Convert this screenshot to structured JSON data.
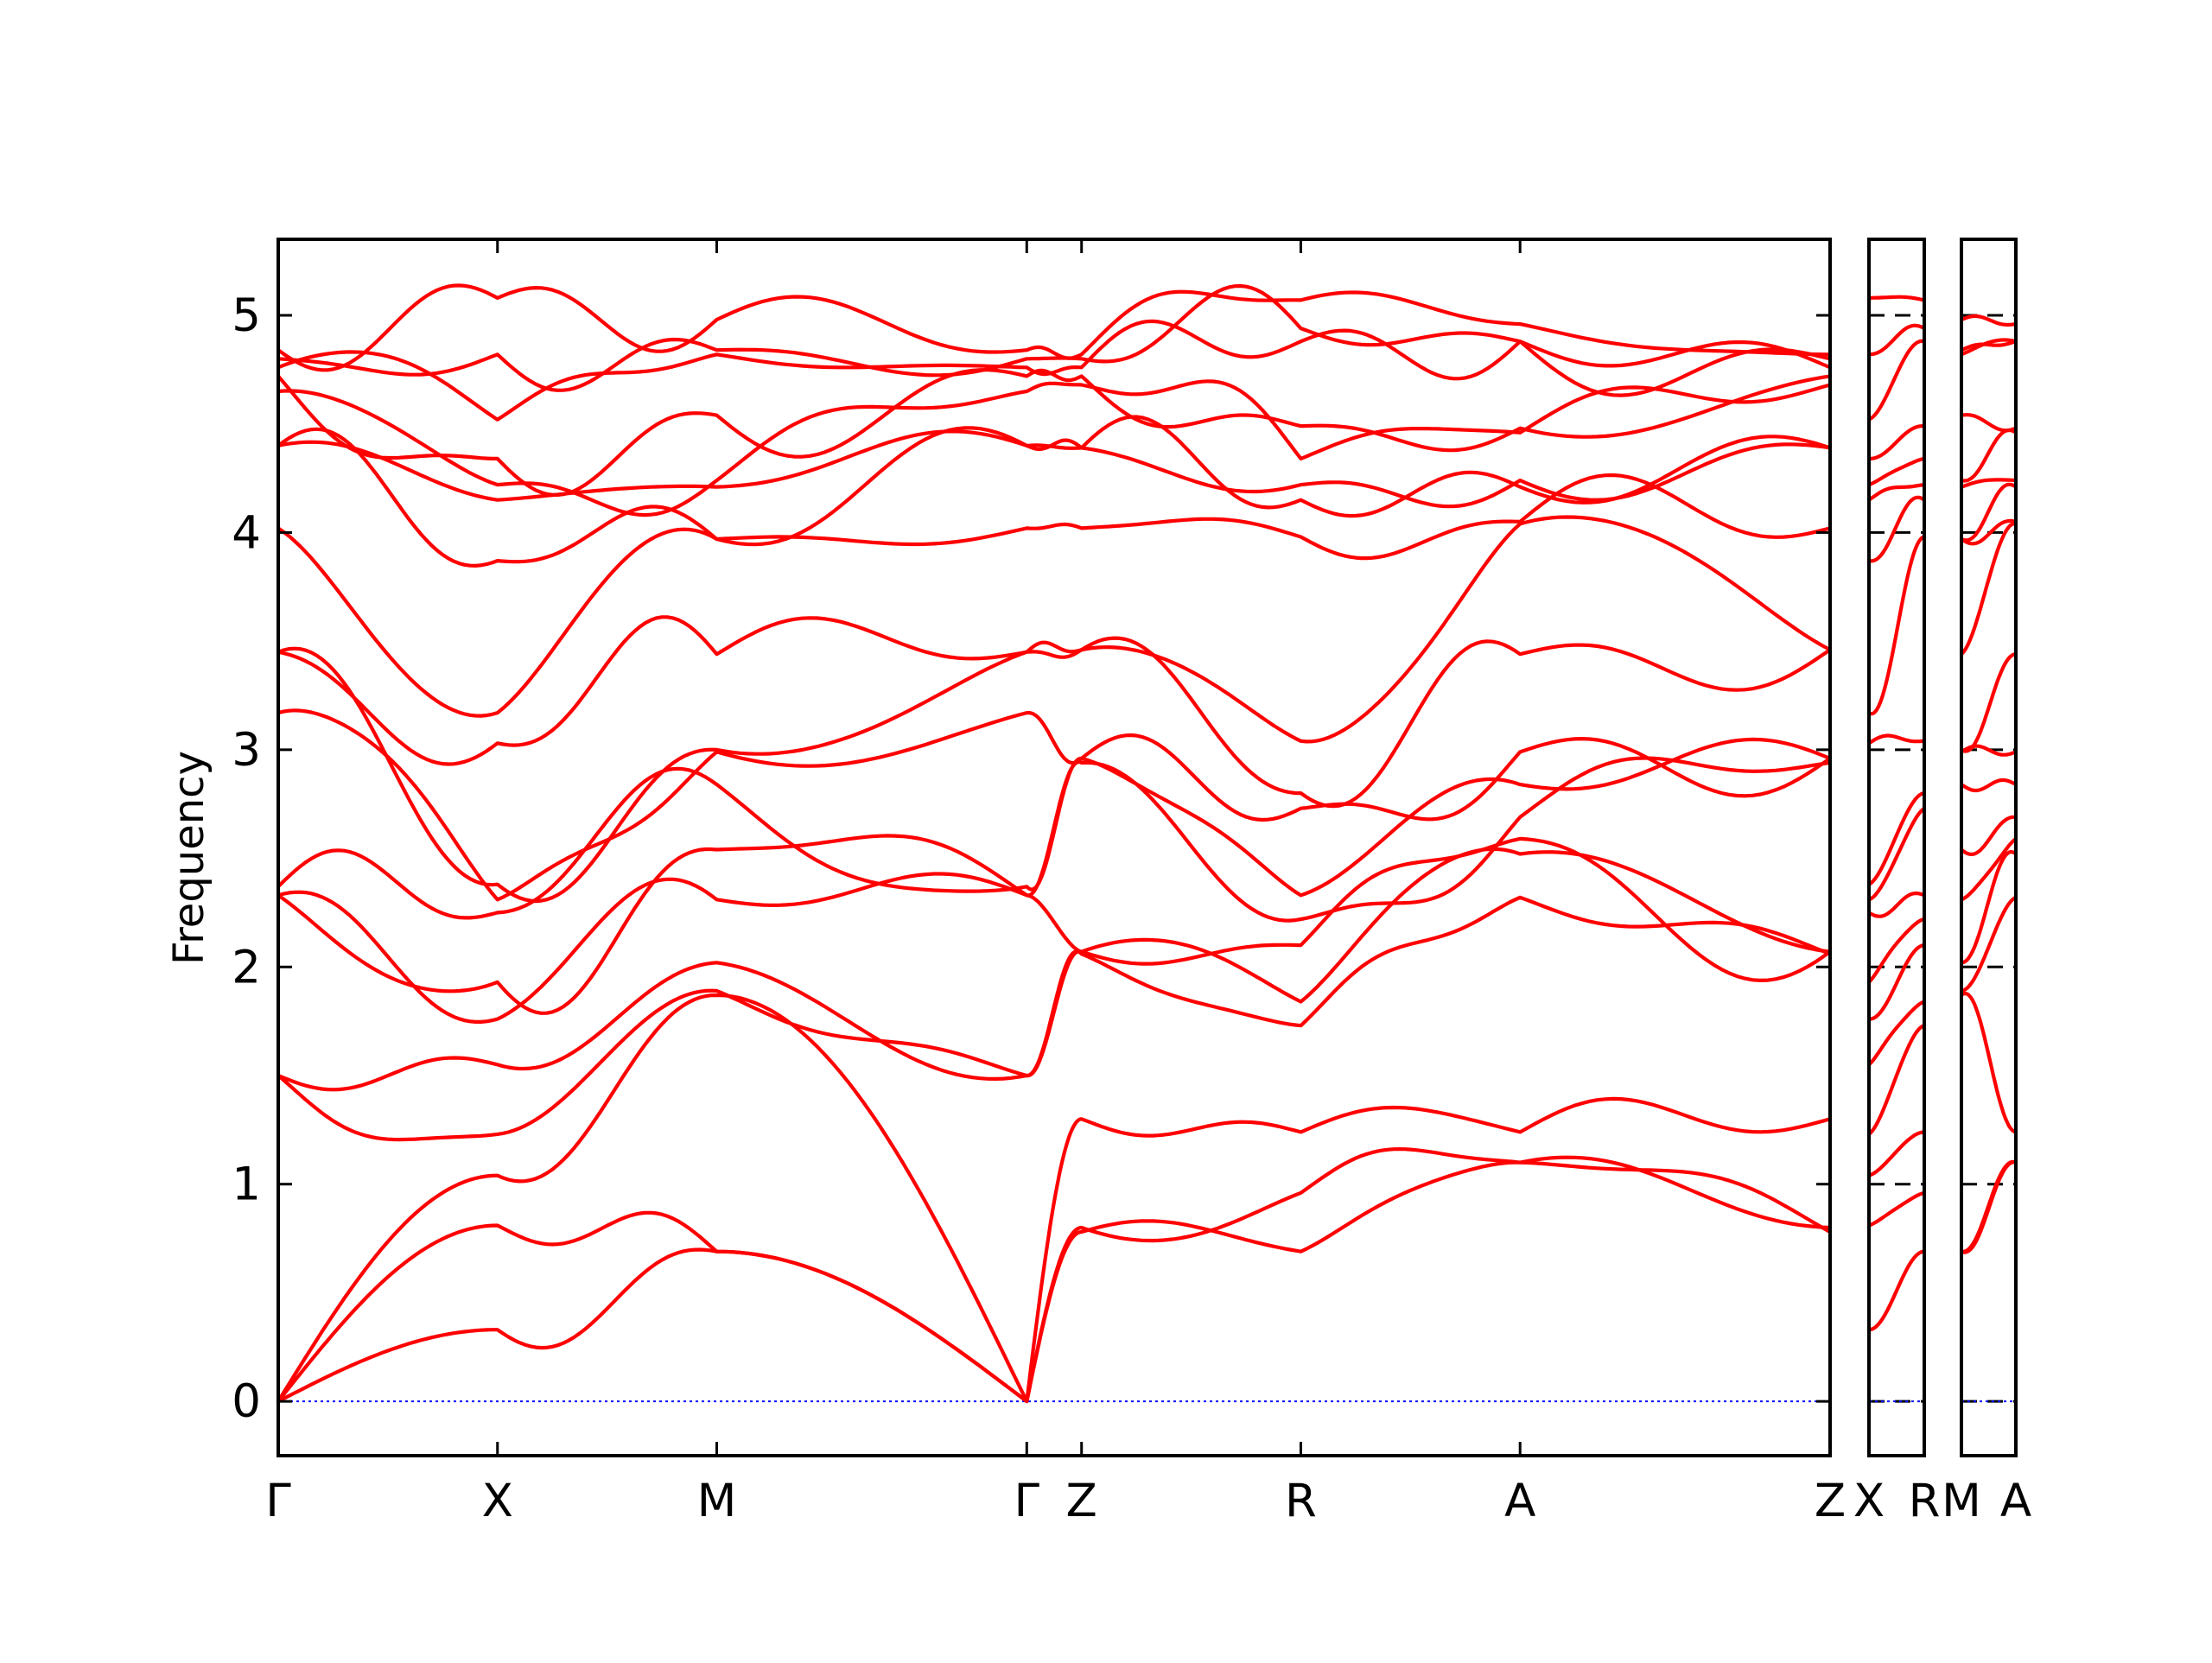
{
  "chart_data": {
    "type": "line",
    "title": "",
    "ylabel": "Frequency",
    "ylim": [
      -0.25,
      5.35
    ],
    "yticks": [
      0,
      1,
      2,
      3,
      4,
      5
    ],
    "ytick_labels": [
      "0",
      "1",
      "2",
      "3",
      "4",
      "5"
    ],
    "grid": false,
    "legend": "none",
    "band_color": "#ff0000",
    "zero_line_color": "#0000ff",
    "panels": [
      {
        "segments": [
          {
            "from": "Γ",
            "to": "X",
            "length": 1.0
          },
          {
            "from": "X",
            "to": "M",
            "length": 1.0
          },
          {
            "from": "M",
            "to": "Γ",
            "length": 1.414
          },
          {
            "from": "Γ",
            "to": "Z",
            "length": 0.25
          },
          {
            "from": "Z",
            "to": "R",
            "length": 1.0
          },
          {
            "from": "R",
            "to": "A",
            "length": 1.0
          },
          {
            "from": "A",
            "to": "Z",
            "length": 1.414
          }
        ],
        "tick_labels": [
          "Γ",
          "X",
          "M",
          "Γ",
          "Z",
          "R",
          "A",
          "Z"
        ]
      },
      {
        "segments": [
          {
            "from": "X",
            "to": "R",
            "length": 0.25
          }
        ],
        "tick_labels": [
          "X",
          "R"
        ]
      },
      {
        "segments": [
          {
            "from": "M",
            "to": "A",
            "length": 0.25
          }
        ],
        "tick_labels": [
          "M",
          "A"
        ]
      }
    ],
    "high_symmetry_frequencies": {
      "Γ": [
        0,
        0,
        0,
        1.5,
        1.5,
        2.33,
        2.33,
        2.37,
        3.17,
        3.45,
        3.45,
        4.02,
        4.4,
        4.4,
        4.65,
        4.72,
        4.76,
        4.8,
        4.84
      ],
      "X": [
        0.33,
        0.81,
        1.04,
        1.23,
        1.55,
        1.76,
        1.93,
        2.25,
        2.31,
        2.38,
        3.03,
        3.17,
        3.87,
        4.15,
        4.22,
        4.34,
        4.52,
        4.82,
        5.08
      ],
      "M": [
        0.69,
        0.69,
        1.87,
        1.89,
        2.02,
        2.31,
        2.54,
        2.84,
        2.99,
        3.0,
        3.44,
        3.97,
        3.97,
        4.21,
        4.24,
        4.54,
        4.82,
        4.84,
        4.98
      ],
      "Z": [
        0.78,
        0.8,
        1.3,
        2.06,
        2.07,
        2.07,
        2.94,
        2.96,
        2.96,
        3.46,
        3.46,
        4.02,
        4.39,
        4.39,
        4.68,
        4.72,
        4.76,
        4.8,
        4.82
      ],
      "R": [
        0.69,
        0.96,
        1.24,
        1.73,
        1.84,
        2.1,
        2.22,
        2.33,
        2.73,
        2.8,
        3.04,
        3.98,
        4.15,
        4.22,
        4.34,
        4.49,
        4.88,
        4.94,
        5.07
      ],
      "A": [
        1.1,
        1.1,
        1.24,
        2.32,
        2.52,
        2.59,
        2.69,
        2.84,
        2.99,
        3.44,
        4.04,
        4.05,
        4.21,
        4.24,
        4.46,
        4.48,
        4.88,
        4.88,
        4.96
      ]
    }
  }
}
